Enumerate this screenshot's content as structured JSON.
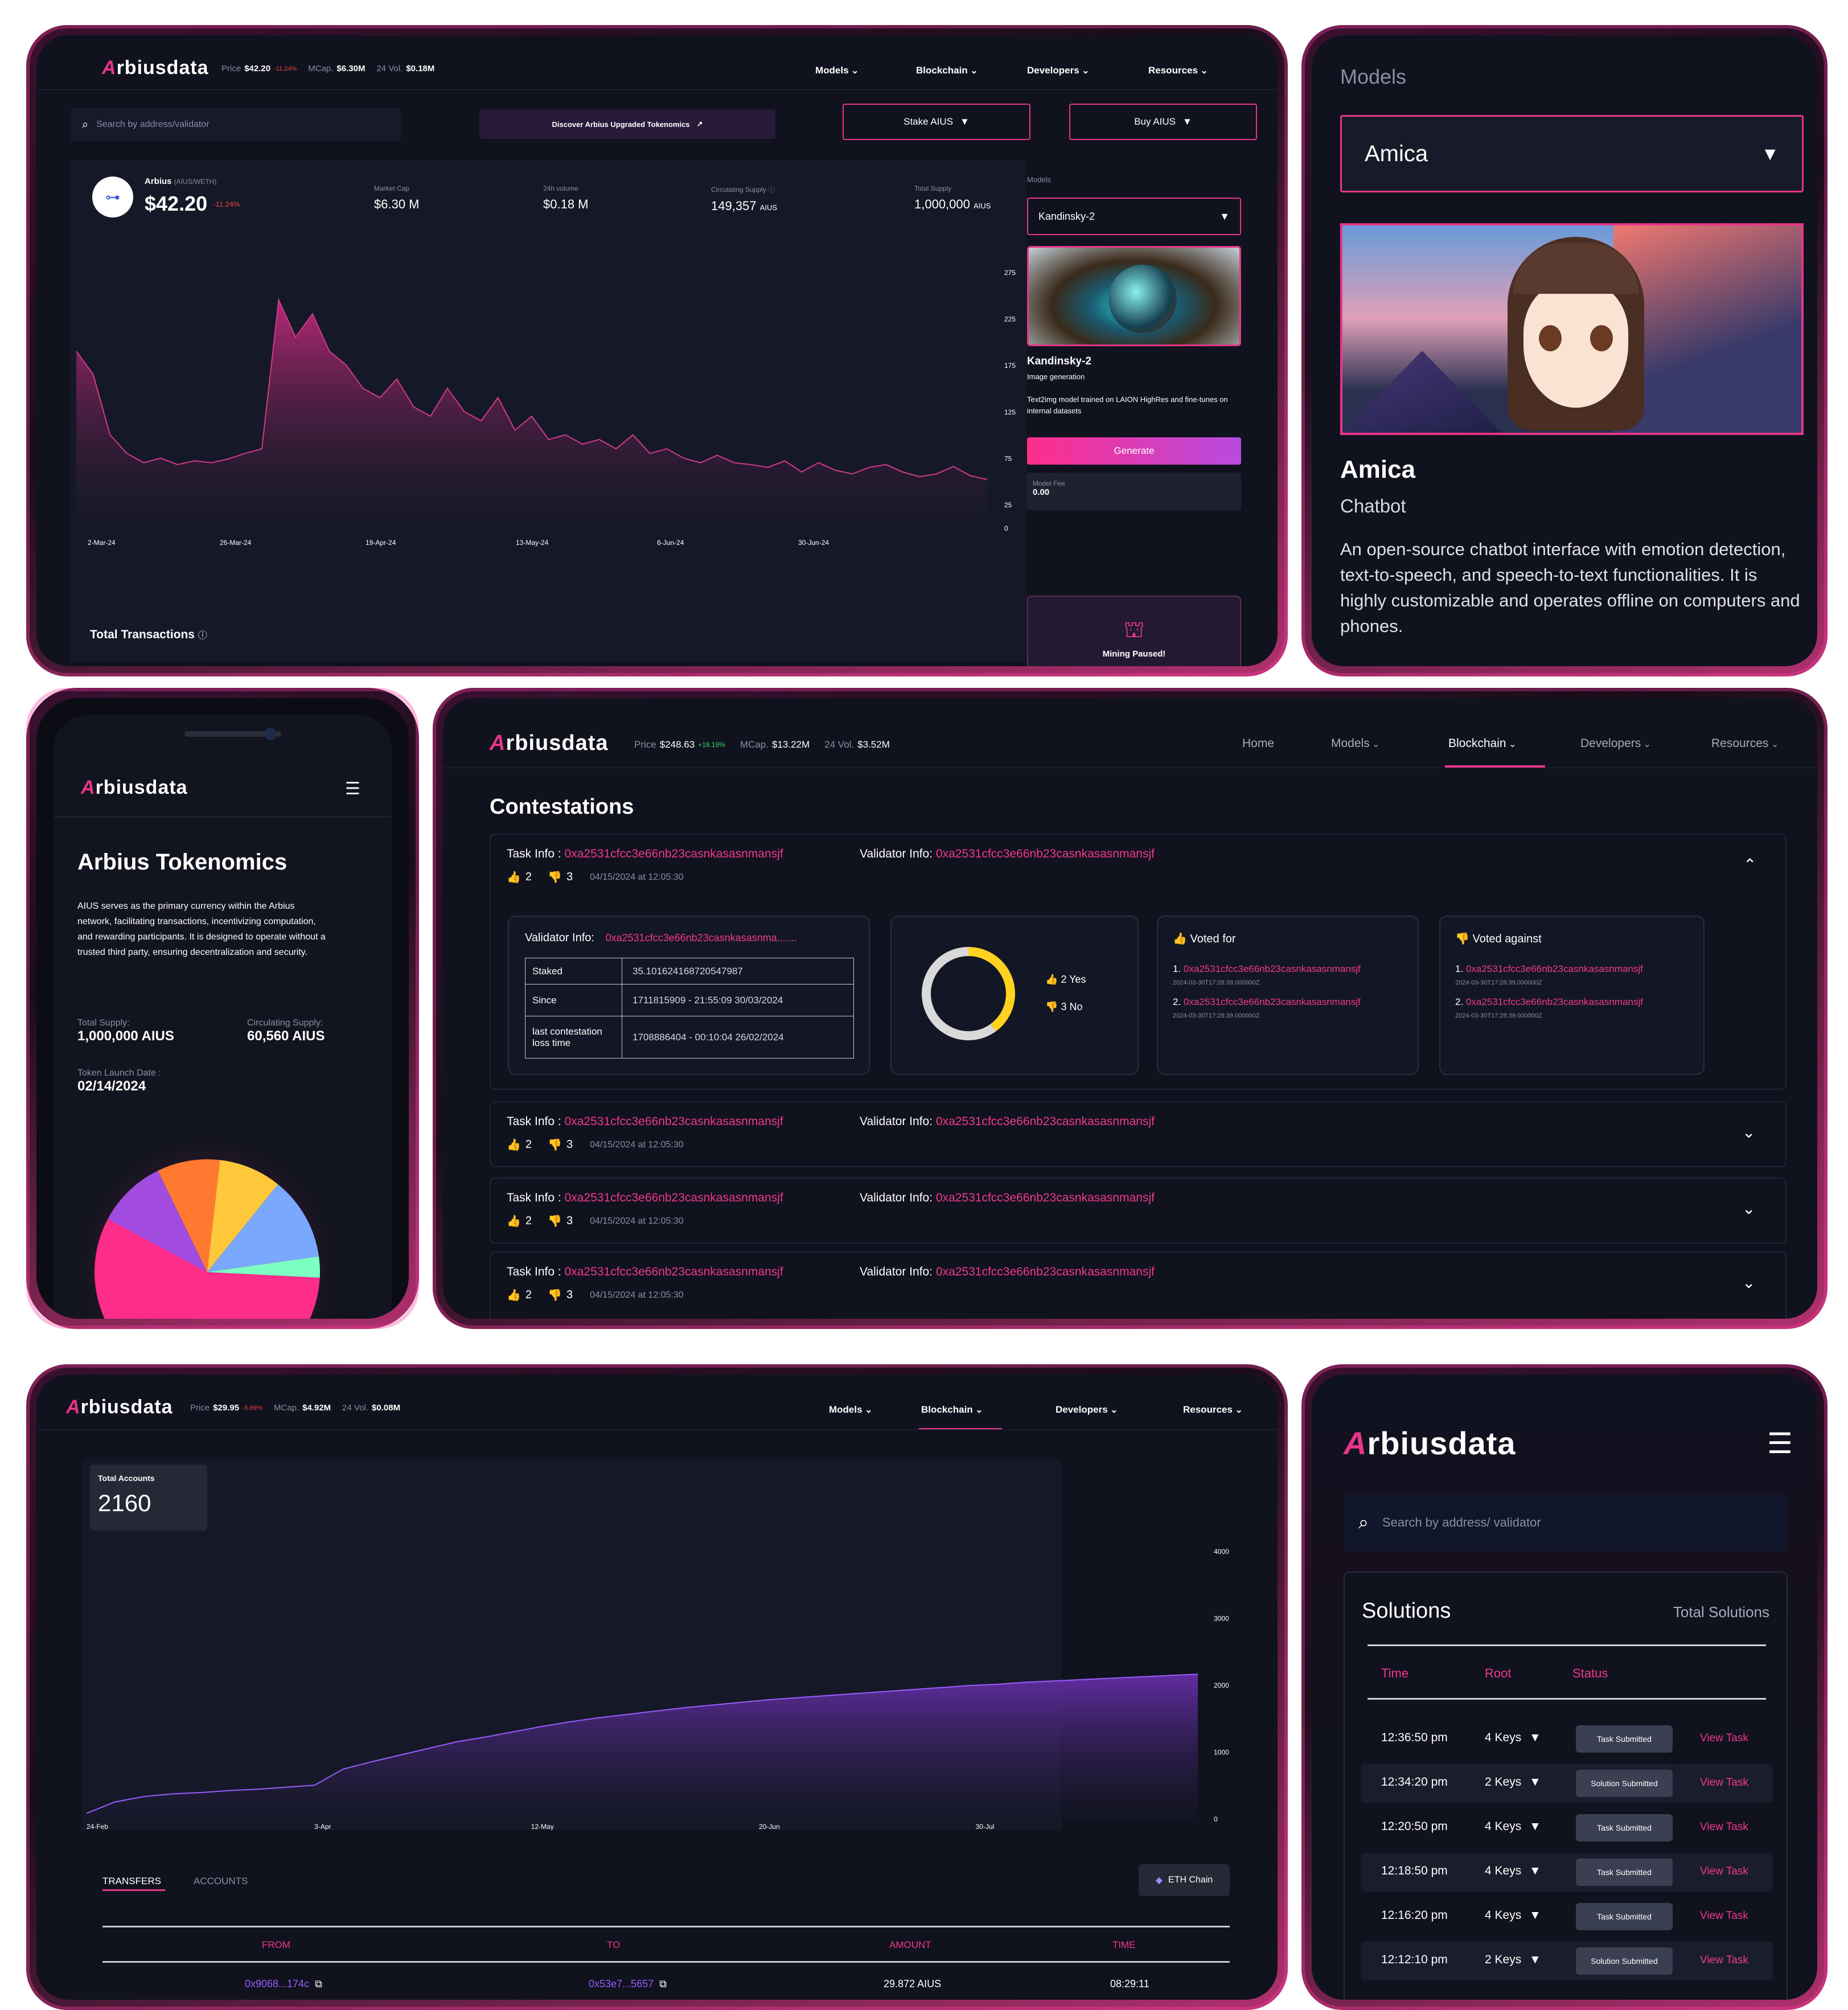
{
  "p1": {
    "brand": "rbiusdata",
    "brand_a": "A",
    "price_lbl": "Price",
    "price": "$42.20",
    "price_chg": "-11.24%",
    "mcap_lbl": "MCap.",
    "mcap": "$6.30M",
    "vol_lbl": "24 Vol.",
    "vol": "$0.18M",
    "nav": [
      "Models",
      "Blockchain",
      "Developers",
      "Resources"
    ],
    "search_ph": "Search by address/validator",
    "discover": "Discover Arbius Upgraded Tokenomics",
    "stake": "Stake AIUS",
    "buy": "Buy AIUS",
    "token_name": "Arbius",
    "token_pair": "(AIUS/WETH)",
    "token_price": "$42.20",
    "token_chg": "-11.24%",
    "stats": [
      {
        "label": "Market Cap",
        "value": "$6.30 M",
        "unit": ""
      },
      {
        "label": "24h volume",
        "value": "$0.18 M",
        "unit": ""
      },
      {
        "label": "Circulating Supply",
        "value": "149,357",
        "unit": "AIUS"
      },
      {
        "label": "Total Supply",
        "value": "1,000,000",
        "unit": "AIUS"
      }
    ],
    "models_lbl": "Models",
    "model_sel": "Kandinsky-2",
    "model_name": "Kandinsky-2",
    "model_type": "Image generation",
    "model_desc": "Text2img model trained on LAION HighRes and fine-tunes on internal datasets",
    "generate": "Generate",
    "fee_lbl": "Model Fee",
    "fee": "0.00",
    "mining": "Mining Paused!",
    "total_tx": "Total Transactions"
  },
  "chart1": {
    "type": "area",
    "x_ticks": [
      "2-Mar-24",
      "26-Mar-24",
      "19-Apr-24",
      "13-May-24",
      "6-Jun-24",
      "30-Jun-24"
    ],
    "y_ticks": [
      "275",
      "225",
      "175",
      "125",
      "75",
      "25",
      "0"
    ],
    "ylim": [
      0,
      300
    ],
    "values": [
      190,
      165,
      100,
      80,
      70,
      75,
      68,
      72,
      70,
      74,
      80,
      85,
      245,
      205,
      230,
      190,
      175,
      150,
      140,
      160,
      130,
      120,
      150,
      125,
      115,
      140,
      105,
      120,
      95,
      100,
      90,
      95,
      85,
      100,
      80,
      85,
      75,
      70,
      78,
      70,
      68,
      65,
      72,
      60,
      70,
      62,
      58,
      65,
      68,
      60,
      55,
      58,
      66,
      56,
      52
    ]
  },
  "p2": {
    "models_lbl": "Models",
    "sel": "Amica",
    "name": "Amica",
    "type": "Chatbot",
    "desc": "An open-source chatbot interface with emotion detection, text-to-speech, and speech-to-text functionalities. It is highly customizable and operates offline on computers and phones."
  },
  "p3": {
    "brand": "rbiusdata",
    "brand_a": "A",
    "title": "Arbius Tokenomics",
    "desc": "AIUS serves as the primary currency within the Arbius network, facilitating transactions, incentivizing computation, and rewarding participants. It is designed to operate without a trusted third party, ensuring decentralization and security.",
    "ts_lbl": "Total Supply:",
    "ts": "1,000,000 AIUS",
    "cs_lbl": "Circulating Supply:",
    "cs": "60,560 AIUS",
    "launch_lbl": "Token Launch Date :",
    "launch": "02/14/2024"
  },
  "pie": {
    "type": "pie",
    "slices": [
      {
        "value": 57,
        "color": "#ff2d8a"
      },
      {
        "value": 10,
        "color": "#a14be0"
      },
      {
        "value": 9,
        "color": "#ff7a30"
      },
      {
        "value": 9,
        "color": "#ffc83a"
      },
      {
        "value": 12,
        "color": "#7aa8ff"
      },
      {
        "value": 3,
        "color": "#7dffc4"
      }
    ]
  },
  "p4": {
    "brand": "rbiusdata",
    "brand_a": "A",
    "price_lbl": "Price",
    "price": "$248.63",
    "price_chg": "+18.19%",
    "mcap_lbl": "MCap.",
    "mcap": "$13.22M",
    "vol_lbl": "24 Vol.",
    "vol": "$3.52M",
    "nav": [
      "Home",
      "Models",
      "Blockchain",
      "Developers",
      "Resources"
    ],
    "title": "Contestations",
    "task_lbl": "Task Info :",
    "task_addr": "0xa2531cfcc3e66nb23casnkasasnmansjf",
    "val_lbl": "Validator Info:",
    "val_addr": "0xa2531cfcc3e66nb23casnkasasnmansjf",
    "up": "2",
    "down": "3",
    "ts": "04/15/2024 at 12:05:30",
    "vi_lbl": "Validator Info:",
    "vi_addr": "0xa2531cfcc3e66nb23casnkasasnma.......",
    "table": [
      {
        "k": "Staked",
        "v": "35.101624168720547987"
      },
      {
        "k": "Since",
        "v": "1711815909 - 21:55:09 30/03/2024"
      },
      {
        "k": "last contestation loss time",
        "v": "1708886404 - 00:10:04 26/02/2024"
      }
    ],
    "yes": "2 Yes",
    "no": "3 No",
    "vf_lbl": "Voted for",
    "va_lbl": "Voted against",
    "votes": [
      {
        "n": "1.",
        "addr": "0xa2531cfcc3e66nb23casnkasasnmansjf",
        "ts": "2024-03-30T17:28:39.000000Z"
      },
      {
        "n": "2.",
        "addr": "0xa2531cfcc3e66nb23casnkasasnmansjf",
        "ts": "2024-03-30T17:28:39.000000Z"
      }
    ]
  },
  "donut": {
    "type": "pie",
    "slices": [
      {
        "value": 2,
        "color": "#ffd21f"
      },
      {
        "value": 3,
        "color": "#d9d9d9"
      }
    ]
  },
  "p5": {
    "brand": "rbiusdata",
    "brand_a": "A",
    "price_lbl": "Price",
    "price": "$29.95",
    "price_chg": "-5.69%",
    "mcap_lbl": "MCap.",
    "mcap": "$4.92M",
    "vol_lbl": "24 Vol.",
    "vol": "$0.08M",
    "nav": [
      "Models",
      "Blockchain",
      "Developers",
      "Resources"
    ],
    "acc_lbl": "Total Accounts",
    "acc": "2160",
    "tab1": "TRANSFERS",
    "tab2": "ACCOUNTS",
    "chain": "ETH Chain",
    "cols": [
      "FROM",
      "TO",
      "AMOUNT",
      "TIME"
    ],
    "row": {
      "from": "0x9068...174c",
      "to": "0x53e7...5657",
      "amount": "29.872",
      "unit": "AIUS",
      "time": "08:29:11"
    }
  },
  "chart2": {
    "type": "area",
    "x_ticks": [
      "24-Feb",
      "3-Apr",
      "12-May",
      "20-Jun",
      "30-Jul"
    ],
    "y_ticks": [
      "4000",
      "3000",
      "2000",
      "1000",
      "0"
    ],
    "ylim": [
      0,
      4000
    ],
    "values": [
      80,
      250,
      330,
      370,
      390,
      420,
      440,
      470,
      500,
      740,
      850,
      950,
      1050,
      1150,
      1220,
      1300,
      1380,
      1450,
      1510,
      1560,
      1610,
      1660,
      1700,
      1740,
      1780,
      1810,
      1840,
      1870,
      1900,
      1930,
      1960,
      1990,
      2010,
      2040,
      2060,
      2080,
      2100,
      2120,
      2140,
      2160
    ]
  },
  "p6": {
    "brand": "rbiusdata",
    "brand_a": "A",
    "search_ph": "Search by address/ validator",
    "title": "Solutions",
    "total": "Total Solutions",
    "cols": [
      "Time",
      "Root",
      "Status"
    ],
    "rows": [
      {
        "time": "12:36:50 pm",
        "root": "4 Keys",
        "status": "Task Submitted",
        "link": "View Task"
      },
      {
        "time": "12:34:20 pm",
        "root": "2 Keys",
        "status": "Solution Submitted",
        "link": "View Task"
      },
      {
        "time": "12:20:50 pm",
        "root": "4 Keys",
        "status": "Task Submitted",
        "link": "View Task"
      },
      {
        "time": "12:18:50 pm",
        "root": "4 Keys",
        "status": "Task Submitted",
        "link": "View Task"
      },
      {
        "time": "12:16:20 pm",
        "root": "4 Keys",
        "status": "Task Submitted",
        "link": "View Task"
      },
      {
        "time": "12:12:10 pm",
        "root": "2 Keys",
        "status": "Solution Submitted",
        "link": "View Task"
      }
    ]
  }
}
